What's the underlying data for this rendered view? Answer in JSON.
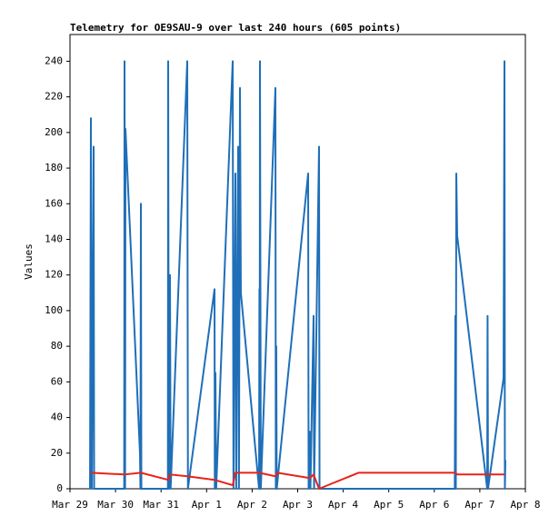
{
  "chart_data": {
    "type": "line",
    "title": "Telemetry for OE9SAU-9 over last 240 hours (605 points)",
    "y_label": "Values",
    "xlim": [
      0,
      10
    ],
    "xticks": [
      {
        "value": 0,
        "label": "Mar 29"
      },
      {
        "value": 1,
        "label": "Mar 30"
      },
      {
        "value": 2,
        "label": "Mar 31"
      },
      {
        "value": 3,
        "label": "Apr 1"
      },
      {
        "value": 4,
        "label": "Apr 2"
      },
      {
        "value": 5,
        "label": "Apr 3"
      },
      {
        "value": 6,
        "label": "Apr 4"
      },
      {
        "value": 7,
        "label": "Apr 5"
      },
      {
        "value": 8,
        "label": "Apr 6"
      },
      {
        "value": 9,
        "label": "Apr 7"
      },
      {
        "value": 10,
        "label": "Apr 8"
      }
    ],
    "ylim": [
      0,
      255
    ],
    "yticks": [
      0,
      20,
      40,
      60,
      80,
      100,
      120,
      140,
      160,
      180,
      200,
      220,
      240
    ],
    "series": [
      {
        "color": "#000000",
        "x": [
          5.47,
          8.46
        ],
        "values": [
          0,
          0
        ]
      },
      {
        "color": "#1f6fb8",
        "x": [
          0.44,
          0.459,
          0.48,
          0.519,
          0.53,
          1.19,
          1.198,
          1.21,
          1.218,
          1.537,
          1.547,
          1.557,
          1.567,
          2.15,
          2.156,
          2.17,
          2.196,
          2.21,
          2.575,
          2.59,
          3.174,
          3.18,
          3.194,
          3.21,
          3.573,
          3.59,
          3.633,
          3.65,
          3.693,
          3.71,
          3.733,
          3.752,
          4.152,
          4.16,
          4.165,
          4.172,
          4.19,
          4.511,
          4.52,
          4.53,
          4.54,
          5.23,
          5.24,
          5.269,
          5.28,
          5.349,
          5.36,
          5.469,
          5.48,
          8.45,
          8.463,
          8.473,
          8.483,
          8.503,
          9.162,
          9.17,
          9.18,
          9.521,
          9.541,
          9.55,
          9.561
        ],
        "values": [
          0,
          208,
          0,
          192,
          0,
          0,
          240,
          0,
          202,
          20,
          0,
          160,
          0,
          0,
          240,
          0,
          120,
          0,
          240,
          0,
          112,
          0,
          65,
          0,
          240,
          0,
          177,
          0,
          192,
          0,
          225,
          110,
          0,
          112,
          0,
          240,
          0,
          225,
          0,
          80,
          0,
          177,
          0,
          32,
          0,
          97,
          0,
          192,
          0,
          0,
          97,
          0,
          177,
          142,
          0,
          97,
          0,
          62,
          240,
          0,
          16
        ]
      },
      {
        "color": "#e8231a",
        "x": [
          0.459,
          1.198,
          1.557,
          2.156,
          2.196,
          2.575,
          3.174,
          3.573,
          3.633,
          4.152,
          4.511,
          4.55,
          5.269,
          5.349,
          5.469,
          6.34,
          8.463,
          8.503,
          9.541
        ],
        "values": [
          9,
          8,
          9,
          5,
          8,
          7,
          5,
          2,
          9,
          9,
          7,
          9,
          6,
          8,
          0,
          9,
          9,
          8,
          8
        ]
      }
    ]
  }
}
